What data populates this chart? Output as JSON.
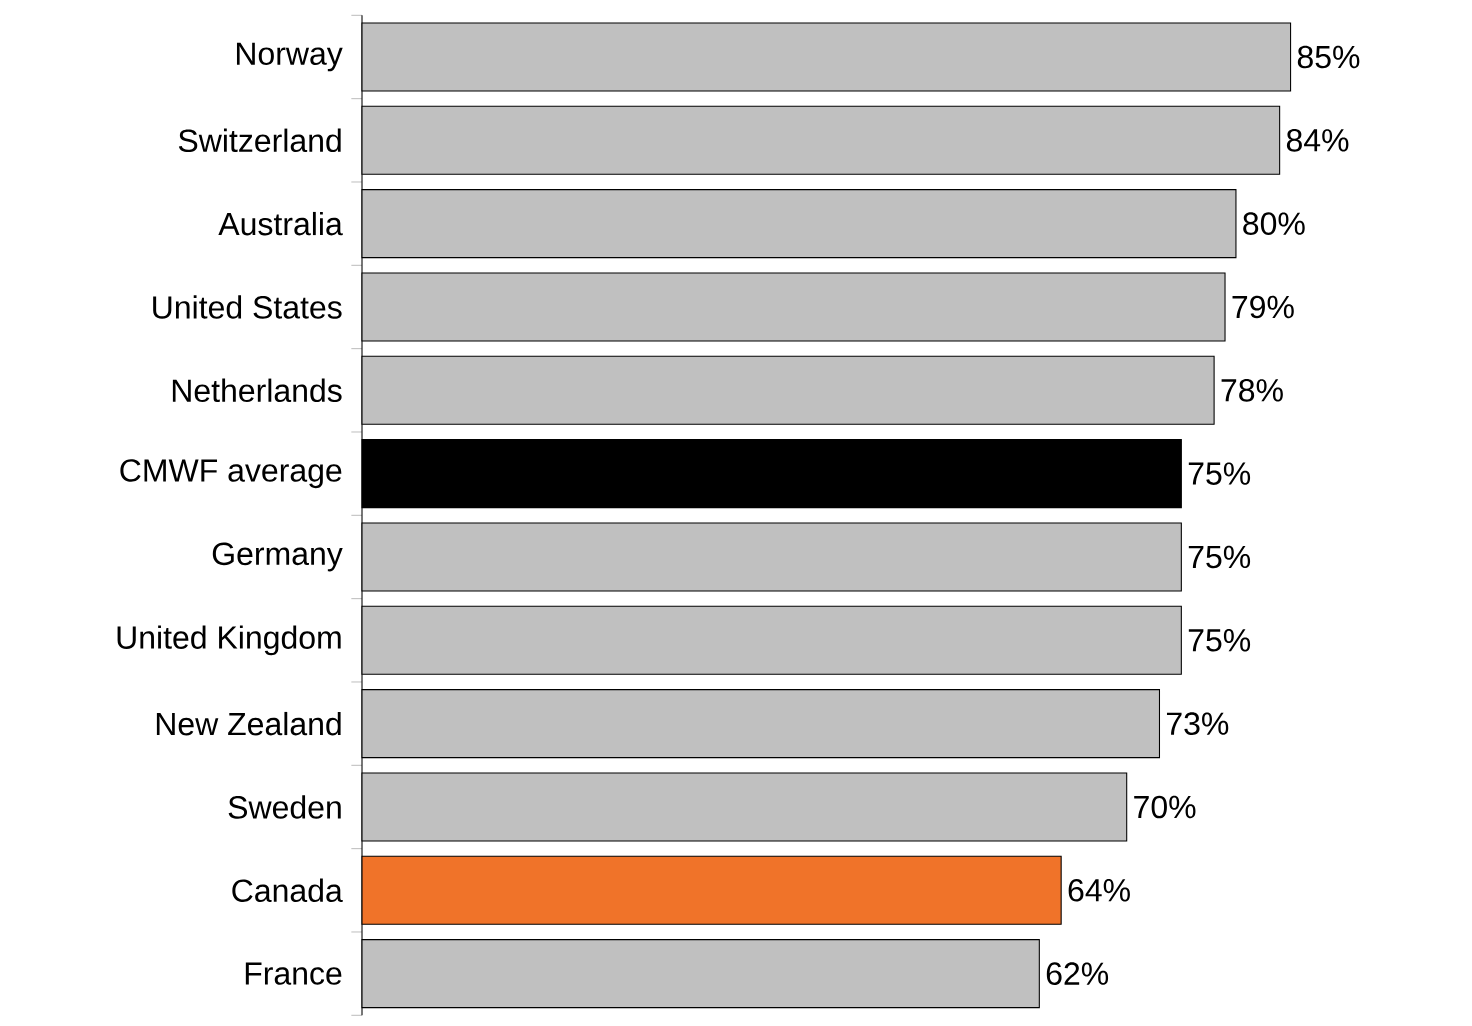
{
  "chart_data": {
    "type": "bar",
    "orientation": "horizontal",
    "relative": false,
    "categories": [
      "Norway",
      "Switzerland",
      "Australia",
      "United States",
      "Netherlands",
      "CMWF average",
      "Germany",
      "United Kingdom",
      "New Zealand",
      "Sweden",
      "Canada",
      "France"
    ],
    "values": [
      85,
      84,
      80,
      79,
      78,
      75,
      75,
      75,
      73,
      70,
      64,
      62
    ],
    "value_labels": [
      "85%",
      "84%",
      "80%",
      "79%",
      "78%",
      "75%",
      "75%",
      "75%",
      "73%",
      "70%",
      "64%",
      "62%"
    ],
    "colors": [
      "#c0c0c0",
      "#c0c0c0",
      "#c0c0c0",
      "#c0c0c0",
      "#c0c0c0",
      "#000000",
      "#c0c0c0",
      "#c0c0c0",
      "#c0c0c0",
      "#c0c0c0",
      "#f07329",
      "#c0c0c0"
    ]
  }
}
